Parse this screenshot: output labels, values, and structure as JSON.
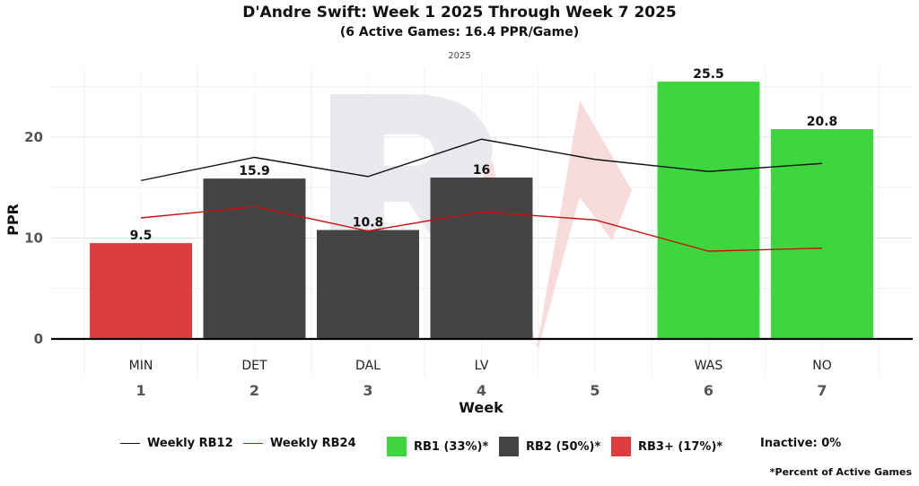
{
  "header": {
    "title": "D'Andre Swift: Week 1 2025 Through Week 7 2025",
    "subtitle": "(6 Active Games: 16.4 PPR/Game)",
    "season_label": "2025"
  },
  "colors": {
    "rb1": "#3dd63d",
    "rb2": "#444444",
    "rb3": "#dd3d3d",
    "line_rb12": "#111111",
    "line_rb24": "#cc1111",
    "watermark_gray": "#e9eaee",
    "watermark_red": "#f7d6d6"
  },
  "chart_data": {
    "type": "bar",
    "title": "D'Andre Swift: Week 1 2025 Through Week 7 2025",
    "xlabel": "Week",
    "ylabel": "PPR",
    "ylim": [
      0,
      27
    ],
    "yticks": [
      0,
      10,
      20
    ],
    "categories": [
      "1",
      "2",
      "3",
      "4",
      "5",
      "6",
      "7"
    ],
    "opponents": [
      "MIN",
      "DET",
      "DAL",
      "LV",
      "",
      "WAS",
      "NO"
    ],
    "values": [
      9.5,
      15.9,
      10.8,
      16,
      null,
      25.5,
      20.8
    ],
    "value_labels": [
      "9.5",
      "15.9",
      "10.8",
      "16",
      "",
      "25.5",
      "20.8"
    ],
    "tiers": [
      "rb3",
      "rb2",
      "rb2",
      "rb2",
      null,
      "rb1",
      "rb1"
    ],
    "series": [
      {
        "name": "Weekly RB12",
        "type": "line",
        "values": [
          15.7,
          18.0,
          16.1,
          19.8,
          17.8,
          16.6,
          17.4
        ]
      },
      {
        "name": "Weekly RB24",
        "type": "line",
        "values": [
          12.0,
          13.1,
          10.7,
          12.6,
          11.8,
          8.7,
          9.0
        ]
      }
    ]
  },
  "legend": {
    "rb12": "Weekly RB12",
    "rb24": "Weekly RB24",
    "rb1": "RB1 (33%)*",
    "rb2": "RB2 (50%)*",
    "rb3": "RB3+ (17%)*",
    "inactive": "Inactive: 0%"
  },
  "footnote": "*Percent of Active Games"
}
